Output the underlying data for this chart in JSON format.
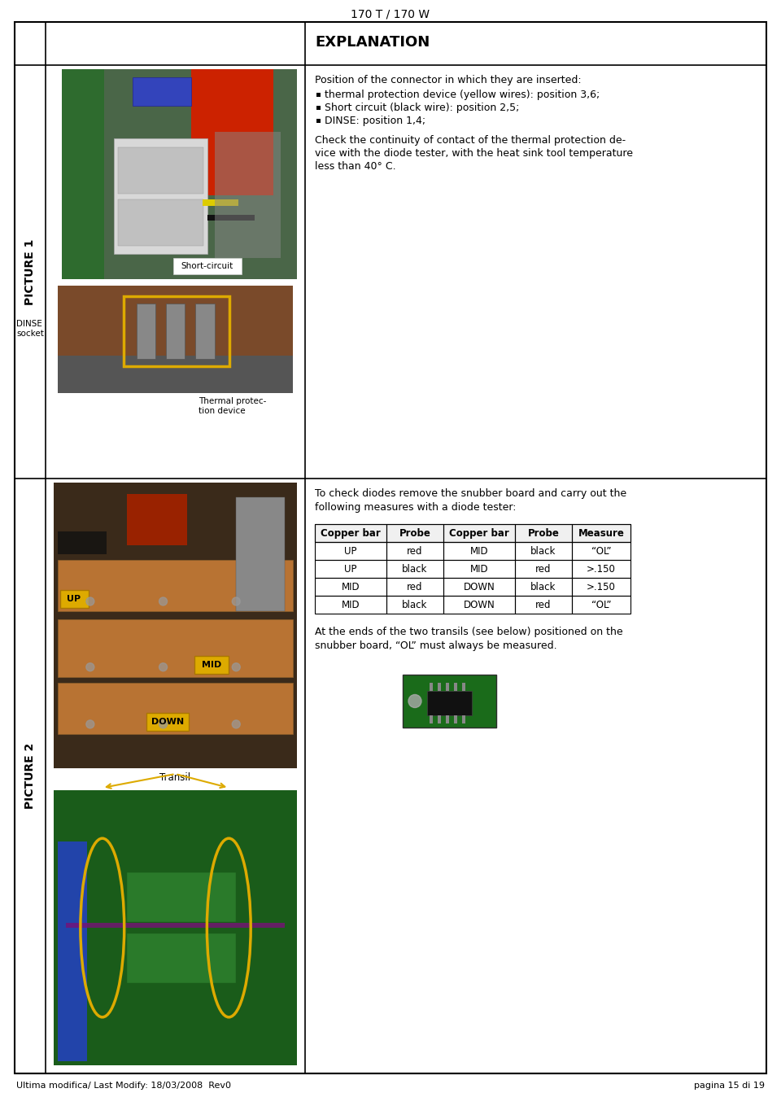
{
  "page_title": "170 T / 170 W",
  "footer_left": "Ultima modifica/ Last Modify: 18/03/2008  Rev0",
  "footer_right": "pagina 15 di 19",
  "explanation_header": "EXPLANATION",
  "picture1_label": "PICTURE 1",
  "picture2_label": "PICTURE 2",
  "pic1_annotations": {
    "short_circuit": "Short-circuit",
    "dinse_socket": "DINSE\nsocket",
    "thermal_protection": "Thermal protec-\ntion device"
  },
  "pic1_text_title": "Position of the connector in which they are inserted:",
  "pic1_bullets": [
    "thermal protection device (yellow wires): position 3,6;",
    "Short circuit (black wire): position 2,5;",
    "DINSE: position 1,4;"
  ],
  "pic1_text_body_lines": [
    "Check the continuity of contact of the thermal protection de-",
    "vice with the diode tester, with the heat sink tool temperature",
    "less than 40° C."
  ],
  "pic2_text_intro_lines": [
    "To check diodes remove the snubber board and carry out the",
    "following measures with a diode tester:"
  ],
  "pic2_table_headers": [
    "Copper bar",
    "Probe",
    "Copper bar",
    "Probe",
    "Measure"
  ],
  "pic2_table_rows": [
    [
      "UP",
      "red",
      "MID",
      "black",
      "“OL”"
    ],
    [
      "UP",
      "black",
      "MID",
      "red",
      ">.150"
    ],
    [
      "MID",
      "red",
      "DOWN",
      "black",
      ">.150"
    ],
    [
      "MID",
      "black",
      "DOWN",
      "red",
      "“OL”"
    ]
  ],
  "pic2_text_footer_lines": [
    "At the ends of the two transils (see below) positioned on the",
    "snubber board, “OL” must always be measured."
  ],
  "pic2_transil_label": "Transil",
  "background_color": "#ffffff"
}
